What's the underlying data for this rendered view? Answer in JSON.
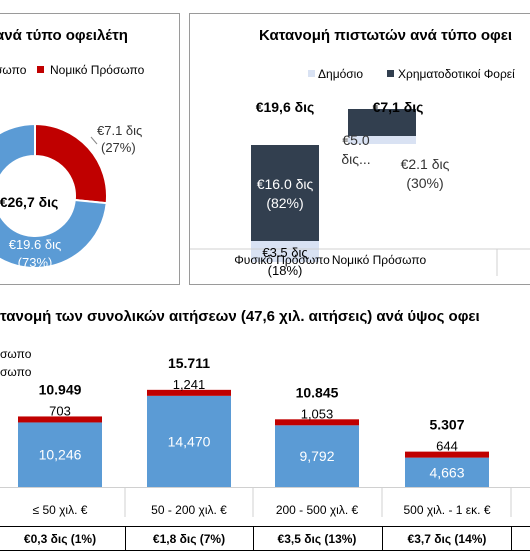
{
  "panel_left": {
    "title": "ανά τύπο οφειλέτη",
    "legend": [
      {
        "label": "σωπο",
        "color": "#5b9bd5"
      },
      {
        "label": "Νομικό Πρόσωπο",
        "color": "#c00000"
      }
    ],
    "center_label": "€26,7 δις",
    "slices": [
      {
        "label": "€7.1 δις",
        "pct": "(27%)",
        "value": 7.1,
        "color": "#c00000"
      },
      {
        "label": "€19.6 δις",
        "pct": "(73%)",
        "value": 19.6,
        "color": "#5b9bd5"
      }
    ]
  },
  "panel_right": {
    "title": "Κατανομή πιστωτών ανά τύπο οφει",
    "legend": [
      {
        "label": "Δημόσιο",
        "color": "#d9e2f3"
      },
      {
        "label": "Χρηματοδοτικοί Φορεί",
        "color": "#323f4f"
      }
    ],
    "categories": [
      "Φυσικό Πρόσωπο",
      "Νομικό Πρόσωπο"
    ],
    "totals": [
      "€19,6 δις",
      "€7,1 δις"
    ],
    "financial": [
      {
        "value": 16.0,
        "label": "€16.0 δις",
        "pct": "(82%)"
      },
      {
        "value": 5.0,
        "label": "€5.0",
        "label2": "δις..."
      }
    ],
    "public": [
      {
        "value": 3.5,
        "label": "€3.5 δις",
        "pct": "(18%)"
      },
      {
        "value": 2.1,
        "label": "€2.1 δις",
        "pct": "(30%)"
      }
    ],
    "colors": {
      "financial": "#323f4f",
      "public": "#d9e2f3"
    }
  },
  "panel_bottom": {
    "title": "τανομή των συνολικών αιτήσεων (47,6 χιλ. αιτήσεις) ανά ύψος οφει",
    "legend": [
      "σωπο",
      "σωπο"
    ],
    "categories": [
      "≤ 50 χιλ. €",
      "50 - 200 χιλ. €",
      "200 - 500 χιλ. €",
      "500 χιλ. - 1 εκ. €"
    ],
    "totals": [
      "10.949",
      "15.711",
      "10.845",
      "5.307"
    ],
    "natural": [
      10246,
      14470,
      9792,
      4663
    ],
    "natural_labels": [
      "10,246",
      "14,470",
      "9,792",
      "4,663"
    ],
    "legal": [
      703,
      1241,
      1053,
      644
    ],
    "legal_labels": [
      "703",
      "1,241",
      "1,053",
      "644"
    ],
    "amounts": [
      "€0,3 δις (1%)",
      "€1,8 δις (7%)",
      "€3,5 δις (13%)",
      "€3,7 δις (14%)"
    ],
    "colors": {
      "natural": "#5b9bd5",
      "legal": "#c00000"
    }
  },
  "chart_data": [
    {
      "type": "pie",
      "title": "ανά τύπο οφειλέτη",
      "categories": [
        "σωπο",
        "Νομικό Πρόσωπο"
      ],
      "values": [
        19.6,
        7.1
      ],
      "percent": [
        73,
        27
      ],
      "center_label": "€26,7 δις"
    },
    {
      "type": "bar",
      "title": "Κατανομή πιστωτών ανά τύπο οφει",
      "categories": [
        "Φυσικό Πρόσωπο",
        "Νομικό Πρόσωπο"
      ],
      "series": [
        {
          "name": "Δημόσιο",
          "values": [
            3.5,
            2.1
          ]
        },
        {
          "name": "Χρηματοδοτικοί Φορεί",
          "values": [
            16.0,
            5.0
          ]
        }
      ],
      "totals": [
        19.6,
        7.1
      ],
      "stacked": true
    },
    {
      "type": "bar",
      "title": "τανομή των συνολικών αιτήσεων (47,6 χιλ. αιτήσεις) ανά ύψος οφει",
      "categories": [
        "≤ 50 χιλ. €",
        "50 - 200 χιλ. €",
        "200 - 500 χιλ. €",
        "500 χιλ. - 1 εκ. €"
      ],
      "series": [
        {
          "values": [
            10246,
            14470,
            9792,
            4663
          ]
        },
        {
          "values": [
            703,
            1241,
            1053,
            644
          ]
        }
      ],
      "totals": [
        10949,
        15711,
        10845,
        5307
      ],
      "stacked": true
    }
  ]
}
